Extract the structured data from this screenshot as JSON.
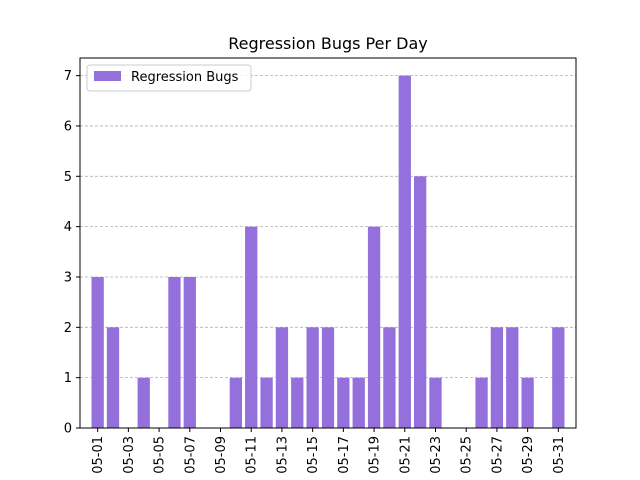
{
  "chart_data": {
    "type": "bar",
    "title": "Regression Bugs Per Day",
    "xlabel": "",
    "ylabel": "",
    "ylim": [
      0,
      7.35
    ],
    "yticks": [
      0,
      1,
      2,
      3,
      4,
      5,
      6,
      7
    ],
    "grid": {
      "y": true,
      "style": "dashed"
    },
    "legend": {
      "placement": "upper-left"
    },
    "categories": [
      "05-01",
      "05-02",
      "05-03",
      "05-04",
      "05-05",
      "05-06",
      "05-07",
      "05-08",
      "05-09",
      "05-10",
      "05-11",
      "05-12",
      "05-13",
      "05-14",
      "05-15",
      "05-16",
      "05-17",
      "05-18",
      "05-19",
      "05-20",
      "05-21",
      "05-22",
      "05-23",
      "05-24",
      "05-25",
      "05-26",
      "05-27",
      "05-28",
      "05-29",
      "05-30",
      "05-31"
    ],
    "tick_labels": [
      "05-01",
      "05-03",
      "05-05",
      "05-07",
      "05-09",
      "05-11",
      "05-13",
      "05-15",
      "05-17",
      "05-19",
      "05-21",
      "05-23",
      "05-25",
      "05-27",
      "05-29",
      "05-31"
    ],
    "series": [
      {
        "name": "Regression Bugs",
        "color": "#9370DB",
        "values": [
          3,
          2,
          0,
          1,
          0,
          3,
          3,
          0,
          0,
          1,
          4,
          1,
          2,
          1,
          2,
          2,
          1,
          1,
          4,
          2,
          7,
          5,
          1,
          0,
          0,
          1,
          2,
          2,
          1,
          0,
          2
        ]
      }
    ]
  }
}
